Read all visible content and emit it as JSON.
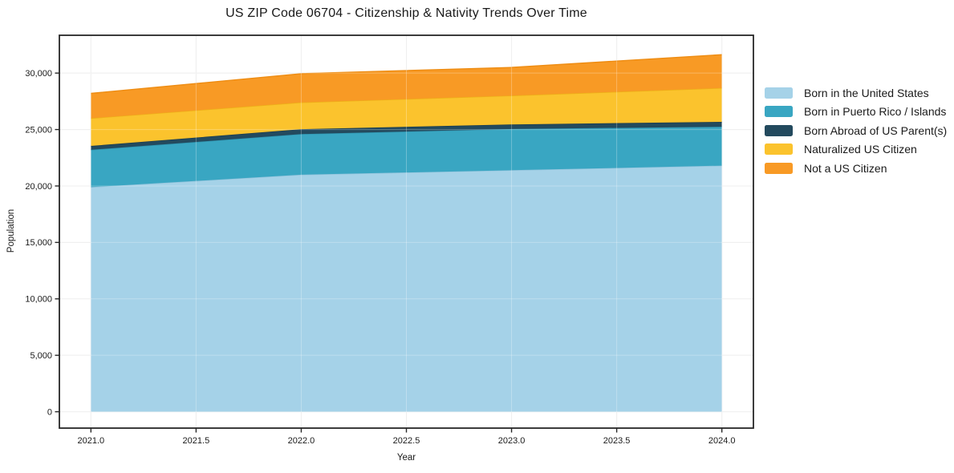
{
  "chart_data": {
    "type": "area",
    "stacked": true,
    "title": "US ZIP Code 06704 - Citizenship & Nativity Trends Over Time",
    "xlabel": "Year",
    "ylabel": "Population",
    "x": [
      2021,
      2022,
      2023,
      2024
    ],
    "series": [
      {
        "name": "Born in the United States",
        "color": "#A5D2E8",
        "edge_color": "#8FC2DB",
        "values": [
          19900,
          21000,
          21400,
          21800
        ]
      },
      {
        "name": "Born in Puerto Rico / Islands",
        "color": "#39A6C2",
        "edge_color": "#2E93AE",
        "values": [
          3300,
          3600,
          3650,
          3450
        ]
      },
      {
        "name": "Born Abroad of US Parent(s)",
        "color": "#234A5E",
        "edge_color": "#1B3C4E",
        "values": [
          350,
          430,
          400,
          430
        ]
      },
      {
        "name": "Naturalized US Citizen",
        "color": "#FBC32D",
        "edge_color": "#EDB117",
        "values": [
          2450,
          2370,
          2550,
          3000
        ]
      },
      {
        "name": "Not a US Citizen",
        "color": "#F89A25",
        "edge_color": "#EE8C12",
        "values": [
          2200,
          2550,
          2500,
          2950
        ]
      }
    ],
    "stacked_totals": [
      28200,
      29950,
      30500,
      31630
    ],
    "x_tick_labels": [
      "2021.0",
      "2021.5",
      "2022.0",
      "2022.5",
      "2023.0",
      "2023.5",
      "2024.0"
    ],
    "x_tick_values": [
      2021,
      2021.5,
      2022,
      2022.5,
      2023,
      2023.5,
      2024
    ],
    "y_tick_labels": [
      "0",
      "5,000",
      "10,000",
      "15,000",
      "20,000",
      "25,000",
      "30,000"
    ],
    "y_tick_values": [
      0,
      5000,
      10000,
      15000,
      20000,
      25000,
      30000
    ],
    "xlim": [
      2020.85,
      2024.15
    ],
    "ylim": [
      -1450,
      33350
    ],
    "grid": true,
    "legend_position": "right",
    "axis_color": "#262626",
    "grid_color": "#e9e9e9",
    "tick_label_color": "#1a1a1a"
  }
}
